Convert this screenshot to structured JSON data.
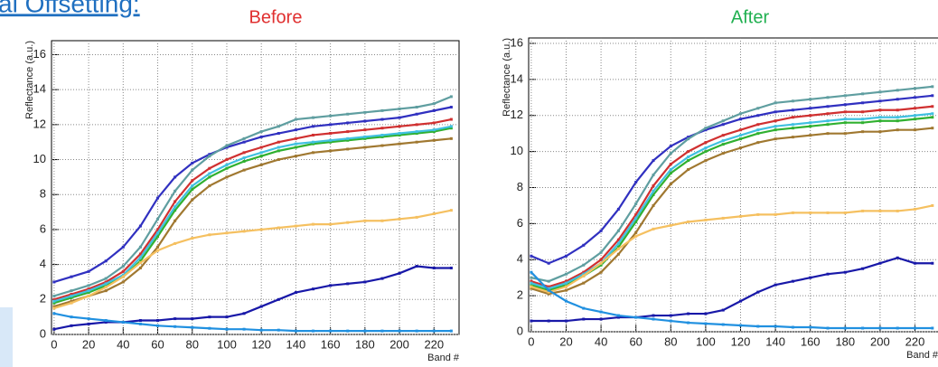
{
  "heading": "al Offsetting:",
  "chart_data": [
    {
      "type": "line",
      "title": "Before",
      "title_color": "#e03030",
      "x_label": "Band #",
      "y_label": "Reflectance (a.u.)",
      "x": [
        0,
        10,
        20,
        30,
        40,
        50,
        60,
        70,
        80,
        90,
        100,
        110,
        120,
        130,
        140,
        150,
        160,
        170,
        180,
        190,
        200,
        210,
        220,
        230
      ],
      "xlim": [
        -1.5,
        234.5
      ],
      "ylim": [
        0,
        16.8
      ],
      "xticks": [
        0,
        20,
        40,
        60,
        80,
        100,
        120,
        140,
        160,
        180,
        200,
        220
      ],
      "yticks": [
        0,
        2,
        4,
        6,
        8,
        10,
        12,
        14,
        16
      ],
      "grid": true,
      "series": [
        {
          "color": "#3030c0",
          "values": [
            3.0,
            3.3,
            3.6,
            4.2,
            5.0,
            6.2,
            7.8,
            9.0,
            9.8,
            10.3,
            10.7,
            11.0,
            11.3,
            11.5,
            11.7,
            11.9,
            12.0,
            12.1,
            12.2,
            12.3,
            12.4,
            12.6,
            12.8,
            13.0
          ]
        },
        {
          "color": "#5f9ea0",
          "values": [
            2.2,
            2.5,
            2.8,
            3.2,
            3.9,
            5.0,
            6.6,
            8.2,
            9.4,
            10.2,
            10.8,
            11.2,
            11.6,
            11.9,
            12.3,
            12.4,
            12.5,
            12.6,
            12.7,
            12.8,
            12.9,
            13.0,
            13.2,
            13.6
          ]
        },
        {
          "color": "#d03030",
          "values": [
            2.0,
            2.3,
            2.6,
            3.0,
            3.6,
            4.6,
            6.0,
            7.6,
            8.8,
            9.5,
            10.0,
            10.4,
            10.7,
            11.0,
            11.2,
            11.4,
            11.5,
            11.6,
            11.7,
            11.8,
            11.9,
            12.0,
            12.1,
            12.3
          ]
        },
        {
          "color": "#30b030",
          "values": [
            1.8,
            2.1,
            2.4,
            2.8,
            3.3,
            4.2,
            5.6,
            7.1,
            8.3,
            9.0,
            9.5,
            9.9,
            10.2,
            10.5,
            10.7,
            10.9,
            11.0,
            11.1,
            11.2,
            11.3,
            11.4,
            11.5,
            11.6,
            11.8
          ]
        },
        {
          "color": "#a07830",
          "values": [
            1.6,
            1.9,
            2.2,
            2.5,
            3.0,
            3.8,
            5.0,
            6.5,
            7.7,
            8.5,
            9.0,
            9.4,
            9.7,
            10.0,
            10.2,
            10.4,
            10.5,
            10.6,
            10.7,
            10.8,
            10.9,
            11.0,
            11.1,
            11.2
          ]
        },
        {
          "color": "#40c0e0",
          "values": [
            1.9,
            2.2,
            2.5,
            2.9,
            3.4,
            4.4,
            5.8,
            7.3,
            8.5,
            9.2,
            9.7,
            10.1,
            10.4,
            10.7,
            10.9,
            11.0,
            11.1,
            11.2,
            11.3,
            11.4,
            11.5,
            11.6,
            11.7,
            11.9
          ]
        },
        {
          "color": "#f5c060",
          "values": [
            1.5,
            1.8,
            2.2,
            2.7,
            3.3,
            4.1,
            4.8,
            5.2,
            5.5,
            5.7,
            5.8,
            5.9,
            6.0,
            6.1,
            6.2,
            6.3,
            6.3,
            6.4,
            6.5,
            6.5,
            6.6,
            6.7,
            6.9,
            7.1
          ]
        },
        {
          "color": "#1818a8",
          "values": [
            0.3,
            0.5,
            0.6,
            0.7,
            0.7,
            0.8,
            0.8,
            0.9,
            0.9,
            1.0,
            1.0,
            1.2,
            1.6,
            2.0,
            2.4,
            2.6,
            2.8,
            2.9,
            3.0,
            3.2,
            3.5,
            3.9,
            3.8,
            3.8
          ]
        },
        {
          "color": "#2090e0",
          "values": [
            1.2,
            1.0,
            0.9,
            0.8,
            0.7,
            0.6,
            0.5,
            0.45,
            0.4,
            0.35,
            0.3,
            0.3,
            0.25,
            0.25,
            0.2,
            0.2,
            0.2,
            0.2,
            0.2,
            0.2,
            0.2,
            0.2,
            0.2,
            0.2
          ]
        }
      ]
    },
    {
      "type": "line",
      "title": "After",
      "title_color": "#20b050",
      "x_label": "Band #",
      "y_label": "Reflectance (a.u.)",
      "x": [
        0,
        10,
        20,
        30,
        40,
        50,
        60,
        70,
        80,
        90,
        100,
        110,
        120,
        130,
        140,
        150,
        160,
        170,
        180,
        190,
        200,
        210,
        220,
        230
      ],
      "xlim": [
        -1.5,
        234.5
      ],
      "ylim": [
        0,
        16.3
      ],
      "xticks": [
        0,
        20,
        40,
        60,
        80,
        100,
        120,
        140,
        160,
        180,
        200,
        220
      ],
      "yticks": [
        0,
        2,
        4,
        6,
        8,
        10,
        12,
        14,
        16
      ],
      "grid": true,
      "series": [
        {
          "color": "#3030c0",
          "values": [
            4.2,
            3.8,
            4.2,
            4.8,
            5.6,
            6.8,
            8.3,
            9.5,
            10.3,
            10.8,
            11.2,
            11.5,
            11.8,
            12.0,
            12.2,
            12.3,
            12.4,
            12.5,
            12.6,
            12.7,
            12.8,
            12.9,
            13.0,
            13.1
          ]
        },
        {
          "color": "#5f9ea0",
          "values": [
            3.0,
            2.8,
            3.2,
            3.7,
            4.4,
            5.6,
            7.1,
            8.7,
            9.9,
            10.7,
            11.3,
            11.7,
            12.1,
            12.4,
            12.7,
            12.8,
            12.9,
            13.0,
            13.1,
            13.2,
            13.3,
            13.4,
            13.5,
            13.6
          ]
        },
        {
          "color": "#d03030",
          "values": [
            2.8,
            2.5,
            2.8,
            3.3,
            4.0,
            5.1,
            6.5,
            8.1,
            9.3,
            10.0,
            10.5,
            10.9,
            11.2,
            11.5,
            11.7,
            11.9,
            12.0,
            12.1,
            12.2,
            12.2,
            12.3,
            12.3,
            12.4,
            12.5
          ]
        },
        {
          "color": "#30b030",
          "values": [
            2.6,
            2.3,
            2.6,
            3.1,
            3.7,
            4.7,
            6.1,
            7.6,
            8.8,
            9.5,
            10.0,
            10.4,
            10.7,
            11.0,
            11.2,
            11.3,
            11.4,
            11.5,
            11.6,
            11.6,
            11.7,
            11.7,
            11.8,
            11.9
          ]
        },
        {
          "color": "#a07830",
          "values": [
            2.4,
            2.1,
            2.3,
            2.7,
            3.3,
            4.3,
            5.5,
            7.0,
            8.2,
            9.0,
            9.5,
            9.9,
            10.2,
            10.5,
            10.7,
            10.8,
            10.9,
            11.0,
            11.0,
            11.1,
            11.1,
            11.2,
            11.2,
            11.3
          ]
        },
        {
          "color": "#40c0e0",
          "values": [
            2.7,
            2.4,
            2.7,
            3.2,
            3.8,
            4.9,
            6.3,
            7.8,
            9.0,
            9.7,
            10.2,
            10.6,
            10.9,
            11.2,
            11.4,
            11.5,
            11.6,
            11.7,
            11.8,
            11.8,
            11.9,
            11.9,
            12.0,
            12.1
          ]
        },
        {
          "color": "#f5c060",
          "values": [
            2.5,
            2.2,
            2.5,
            3.1,
            3.8,
            4.6,
            5.3,
            5.7,
            5.9,
            6.1,
            6.2,
            6.3,
            6.4,
            6.5,
            6.5,
            6.6,
            6.6,
            6.6,
            6.6,
            6.7,
            6.7,
            6.7,
            6.8,
            7.0
          ]
        },
        {
          "color": "#1818a8",
          "values": [
            0.6,
            0.6,
            0.6,
            0.7,
            0.7,
            0.8,
            0.8,
            0.9,
            0.9,
            1.0,
            1.0,
            1.2,
            1.7,
            2.2,
            2.6,
            2.8,
            3.0,
            3.2,
            3.3,
            3.5,
            3.8,
            4.1,
            3.8,
            3.8
          ]
        },
        {
          "color": "#2090e0",
          "values": [
            3.3,
            2.3,
            1.7,
            1.3,
            1.1,
            0.9,
            0.8,
            0.7,
            0.6,
            0.5,
            0.45,
            0.4,
            0.35,
            0.3,
            0.3,
            0.25,
            0.25,
            0.2,
            0.2,
            0.2,
            0.2,
            0.2,
            0.2,
            0.2
          ]
        }
      ]
    }
  ]
}
